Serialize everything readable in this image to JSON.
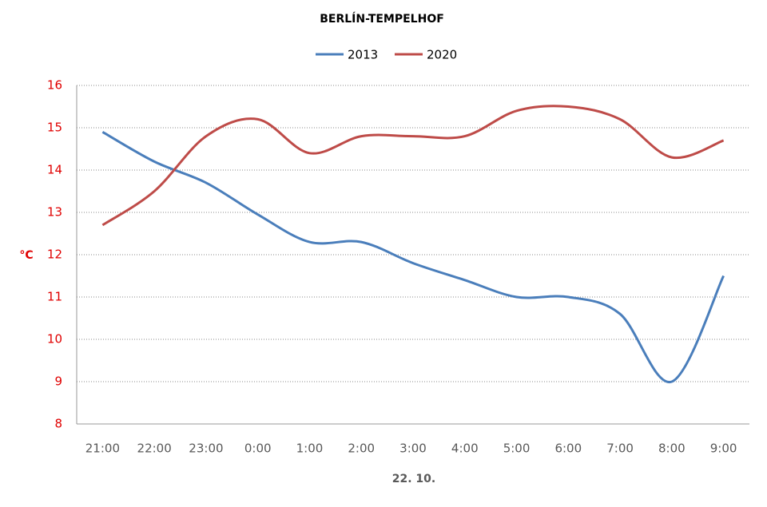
{
  "chart_data": {
    "type": "line",
    "title": "BERLÍN-TEMPELHOF",
    "x_label": "22. 10.",
    "y_label": "°C",
    "categories": [
      "21:00",
      "22:00",
      "23:00",
      "0:00",
      "1:00",
      "2:00",
      "3:00",
      "4:00",
      "5:00",
      "6:00",
      "7:00",
      "8:00",
      "9:00"
    ],
    "series": [
      {
        "name": "2013",
        "color": "#4a7ebb",
        "values": [
          14.9,
          14.2,
          13.7,
          12.95,
          12.3,
          12.3,
          11.8,
          11.4,
          11.0,
          11.0,
          10.6,
          9.0,
          11.5
        ]
      },
      {
        "name": "2020",
        "color": "#be4b48",
        "values": [
          12.7,
          13.5,
          14.8,
          15.2,
          14.4,
          14.8,
          14.8,
          14.8,
          15.4,
          15.5,
          15.2,
          14.3,
          14.7
        ]
      }
    ],
    "ylim": [
      8,
      16
    ],
    "yticks": [
      8,
      9,
      10,
      11,
      12,
      13,
      14,
      15,
      16
    ],
    "grid": true,
    "smooth": true,
    "legend": "top",
    "tick_color": "#e00000"
  }
}
